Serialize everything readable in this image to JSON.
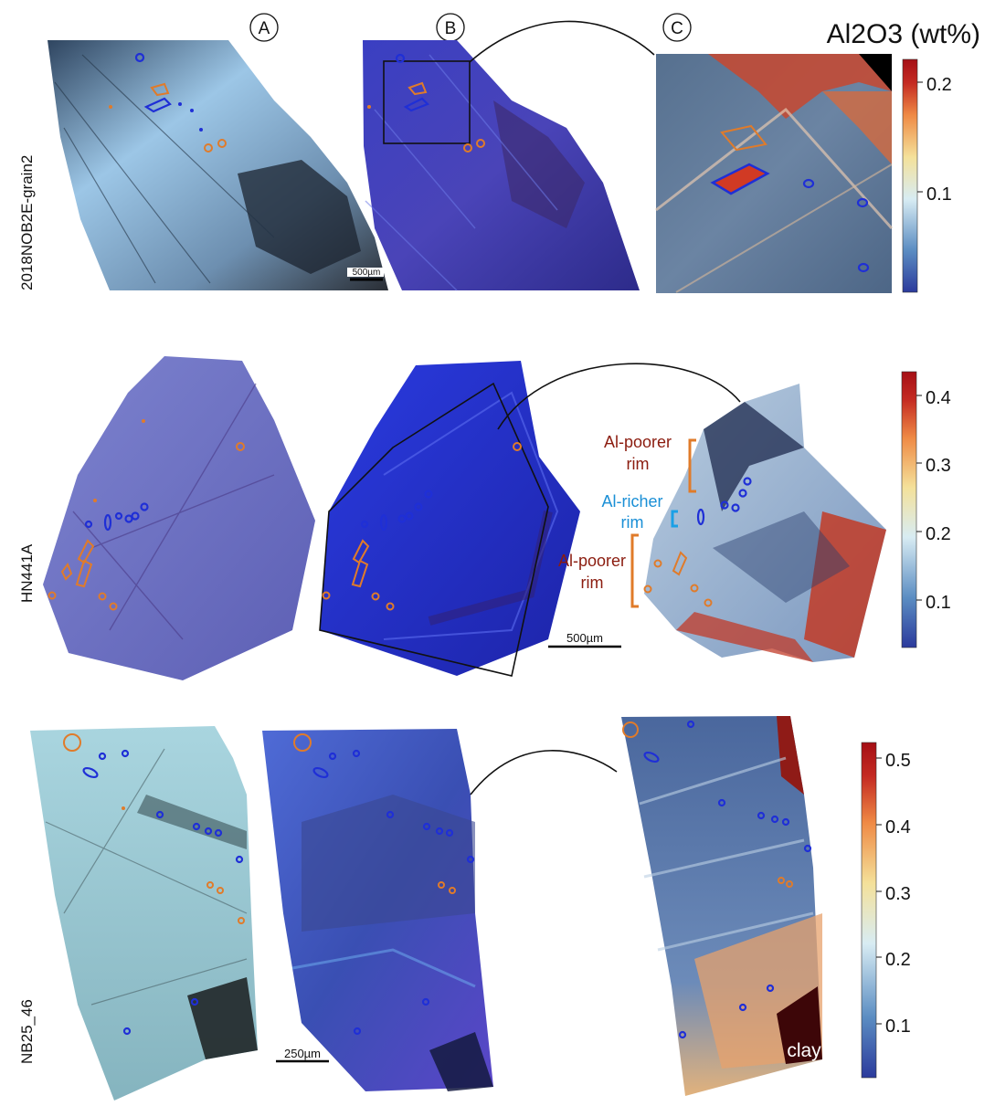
{
  "figure": {
    "columns": [
      "A",
      "B",
      "C"
    ],
    "rows": [
      {
        "sample": "2018NOB2E-grain2",
        "scale_bar": "500µm",
        "colorbar": {
          "title": "Al2O3 (wt%)",
          "ticks": [
            "0.2",
            "0.1"
          ]
        }
      },
      {
        "sample": "HN441A",
        "scale_bar": "500µm",
        "colorbar": {
          "title": "",
          "ticks": [
            "0.4",
            "0.3",
            "0.2",
            "0.1"
          ]
        },
        "annotations": {
          "poorer_top": [
            "Al-poorer",
            "rim"
          ],
          "richer": [
            "Al-richer",
            "rim"
          ],
          "poorer_bottom": [
            "Al-poorer",
            "rim"
          ]
        }
      },
      {
        "sample": "NB25_46",
        "scale_bar": "250µm",
        "colorbar": {
          "title": "",
          "ticks": [
            "0.5",
            "0.4",
            "0.3",
            "0.2",
            "0.1"
          ]
        },
        "annotations": {
          "clay": "clay"
        }
      }
    ],
    "colors": {
      "inclusion_orange": "#e07b2a",
      "inclusion_blue": "#1f2fd6",
      "label_red": "#8b1c0f",
      "label_blue": "#1a8fd6",
      "colormap": [
        "#2b3a9c",
        "#5b8dc2",
        "#d8ecf3",
        "#f4e19a",
        "#ef8a45",
        "#c42a22",
        "#a50f15"
      ]
    }
  }
}
